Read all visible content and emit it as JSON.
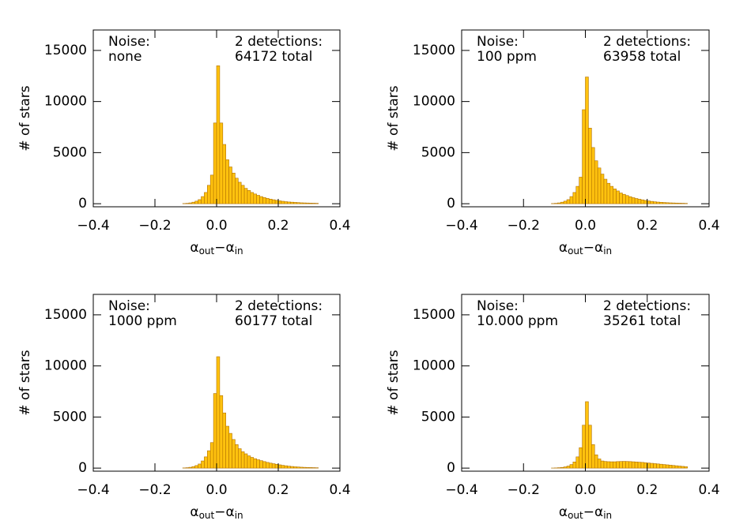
{
  "chart_data": [
    {
      "type": "histogram",
      "annotations": [
        "Noise:",
        "none",
        "2 detections:",
        "64172 total"
      ],
      "y_label": "# of stars",
      "x_label": [
        "α",
        "out",
        "−α",
        "in"
      ],
      "bins": [
        -0.11,
        -0.1,
        -0.09,
        -0.08,
        -0.07,
        -0.06,
        -0.05,
        -0.04,
        -0.03,
        -0.02,
        -0.01,
        0,
        0.01,
        0.02,
        0.03,
        0.04,
        0.05,
        0.06,
        0.07,
        0.08,
        0.09,
        0.1,
        0.11,
        0.12,
        0.13,
        0.14,
        0.15,
        0.16,
        0.17,
        0.18,
        0.19,
        0.2,
        0.21,
        0.22,
        0.23,
        0.24,
        0.25,
        0.26,
        0.27,
        0.28,
        0.29,
        0.3,
        0.31,
        0.32,
        0.33
      ],
      "values": [
        20,
        40,
        80,
        150,
        250,
        400,
        700,
        1100,
        1800,
        2800,
        7900,
        13500,
        7900,
        5800,
        4300,
        3600,
        3000,
        2500,
        2100,
        1800,
        1500,
        1300,
        1100,
        950,
        820,
        700,
        600,
        520,
        450,
        390,
        330,
        280,
        240,
        200,
        170,
        150,
        130,
        110,
        90,
        80,
        70,
        60,
        50,
        40
      ],
      "color": "#ffc20e",
      "edge_color": "#b07000",
      "xlim": [
        -0.4,
        0.4
      ],
      "ylim": [
        -300,
        17000
      ],
      "xticks": [
        {
          "value": -0.4,
          "label": "−0.4"
        },
        {
          "value": -0.2,
          "label": "−0.2"
        },
        {
          "value": 0,
          "label": "0.0"
        },
        {
          "value": 0.2,
          "label": "0.2"
        },
        {
          "value": 0.4,
          "label": "0.4"
        }
      ],
      "yticks": [
        0,
        5000,
        10000,
        15000
      ]
    },
    {
      "type": "histogram",
      "annotations": [
        "Noise:",
        "100 ppm",
        "2 detections:",
        "63958 total"
      ],
      "y_label": "# of stars",
      "x_label": [
        "α",
        "out",
        "−α",
        "in"
      ],
      "bins": [
        -0.11,
        -0.1,
        -0.09,
        -0.08,
        -0.07,
        -0.06,
        -0.05,
        -0.04,
        -0.03,
        -0.02,
        -0.01,
        0,
        0.01,
        0.02,
        0.03,
        0.04,
        0.05,
        0.06,
        0.07,
        0.08,
        0.09,
        0.1,
        0.11,
        0.12,
        0.13,
        0.14,
        0.15,
        0.16,
        0.17,
        0.18,
        0.19,
        0.2,
        0.21,
        0.22,
        0.23,
        0.24,
        0.25,
        0.26,
        0.27,
        0.28,
        0.29,
        0.3,
        0.31,
        0.32,
        0.33
      ],
      "values": [
        20,
        40,
        80,
        150,
        250,
        400,
        700,
        1100,
        1700,
        2600,
        9200,
        12400,
        7400,
        5500,
        4200,
        3500,
        2900,
        2400,
        2000,
        1700,
        1450,
        1250,
        1050,
        920,
        800,
        690,
        590,
        510,
        440,
        380,
        320,
        270,
        230,
        190,
        160,
        140,
        120,
        100,
        85,
        75,
        65,
        55,
        45,
        35
      ],
      "color": "#ffc20e",
      "edge_color": "#b07000",
      "xlim": [
        -0.4,
        0.4
      ],
      "ylim": [
        -300,
        17000
      ],
      "xticks": [
        {
          "value": -0.4,
          "label": "−0.4"
        },
        {
          "value": -0.2,
          "label": "−0.2"
        },
        {
          "value": 0,
          "label": "0.0"
        },
        {
          "value": 0.2,
          "label": "0.2"
        },
        {
          "value": 0.4,
          "label": "0.4"
        }
      ],
      "yticks": [
        0,
        5000,
        10000,
        15000
      ]
    },
    {
      "type": "histogram",
      "annotations": [
        "Noise:",
        "1000 ppm",
        "2 detections:",
        "60177 total"
      ],
      "y_label": "# of stars",
      "x_label": [
        "α",
        "out",
        "−α",
        "in"
      ],
      "bins": [
        -0.11,
        -0.1,
        -0.09,
        -0.08,
        -0.07,
        -0.06,
        -0.05,
        -0.04,
        -0.03,
        -0.02,
        -0.01,
        0,
        0.01,
        0.02,
        0.03,
        0.04,
        0.05,
        0.06,
        0.07,
        0.08,
        0.09,
        0.1,
        0.11,
        0.12,
        0.13,
        0.14,
        0.15,
        0.16,
        0.17,
        0.18,
        0.19,
        0.2,
        0.21,
        0.22,
        0.23,
        0.24,
        0.25,
        0.26,
        0.27,
        0.28,
        0.29,
        0.3,
        0.31,
        0.32,
        0.33
      ],
      "values": [
        20,
        40,
        80,
        150,
        250,
        400,
        700,
        1100,
        1700,
        2500,
        7300,
        10900,
        7100,
        5400,
        4100,
        3400,
        2800,
        2300,
        1900,
        1600,
        1400,
        1200,
        1050,
        920,
        820,
        730,
        640,
        560,
        490,
        430,
        370,
        320,
        270,
        230,
        190,
        160,
        130,
        110,
        90,
        75,
        65,
        55,
        45,
        35
      ],
      "color": "#ffc20e",
      "edge_color": "#b07000",
      "xlim": [
        -0.4,
        0.4
      ],
      "ylim": [
        -300,
        17000
      ],
      "xticks": [
        {
          "value": -0.4,
          "label": "−0.4"
        },
        {
          "value": -0.2,
          "label": "−0.2"
        },
        {
          "value": 0,
          "label": "0.0"
        },
        {
          "value": 0.2,
          "label": "0.2"
        },
        {
          "value": 0.4,
          "label": "0.4"
        }
      ],
      "yticks": [
        0,
        5000,
        10000,
        15000
      ]
    },
    {
      "type": "histogram",
      "annotations": [
        "Noise:",
        "10.000 ppm",
        "2 detections:",
        "35261 total"
      ],
      "y_label": "# of stars",
      "x_label": [
        "α",
        "out",
        "−α",
        "in"
      ],
      "bins": [
        -0.11,
        -0.1,
        -0.09,
        -0.08,
        -0.07,
        -0.06,
        -0.05,
        -0.04,
        -0.03,
        -0.02,
        -0.01,
        0,
        0.01,
        0.02,
        0.03,
        0.04,
        0.05,
        0.06,
        0.07,
        0.08,
        0.09,
        0.1,
        0.11,
        0.12,
        0.13,
        0.14,
        0.15,
        0.16,
        0.17,
        0.18,
        0.19,
        0.2,
        0.21,
        0.22,
        0.23,
        0.24,
        0.25,
        0.26,
        0.27,
        0.28,
        0.29,
        0.3,
        0.31,
        0.32,
        0.33
      ],
      "values": [
        10,
        20,
        40,
        70,
        120,
        200,
        350,
        600,
        1100,
        2000,
        4200,
        6500,
        4200,
        2300,
        1300,
        900,
        700,
        650,
        630,
        620,
        620,
        640,
        650,
        660,
        650,
        640,
        620,
        600,
        580,
        560,
        530,
        500,
        470,
        440,
        410,
        380,
        350,
        320,
        290,
        260,
        230,
        200,
        170,
        140
      ],
      "color": "#ffc20e",
      "edge_color": "#b07000",
      "xlim": [
        -0.4,
        0.4
      ],
      "ylim": [
        -300,
        17000
      ],
      "xticks": [
        {
          "value": -0.4,
          "label": "−0.4"
        },
        {
          "value": -0.2,
          "label": "−0.2"
        },
        {
          "value": 0,
          "label": "0.0"
        },
        {
          "value": 0.2,
          "label": "0.2"
        },
        {
          "value": 0.4,
          "label": "0.4"
        }
      ],
      "yticks": [
        0,
        5000,
        10000,
        15000
      ]
    }
  ]
}
